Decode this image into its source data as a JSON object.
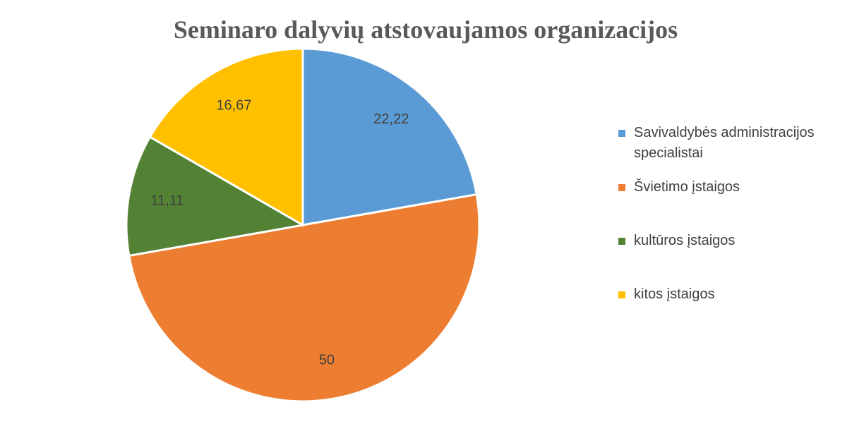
{
  "chart_data": {
    "type": "pie",
    "title": "Seminaro dalyvių atstovaujamos organizacijos",
    "categories": [
      "Savivaldybės administracijos specialistai",
      "Švietimo įstaigos",
      "kultūros įstaigos",
      "kitos įstaigos"
    ],
    "values": [
      22.22,
      50,
      11.11,
      16.67
    ],
    "value_labels": [
      "22,22",
      "50",
      "11,11",
      "16,67"
    ],
    "colors": [
      "#5b9bd5",
      "#ed7d31",
      "#548235",
      "#ffc000"
    ],
    "legend": "right"
  }
}
